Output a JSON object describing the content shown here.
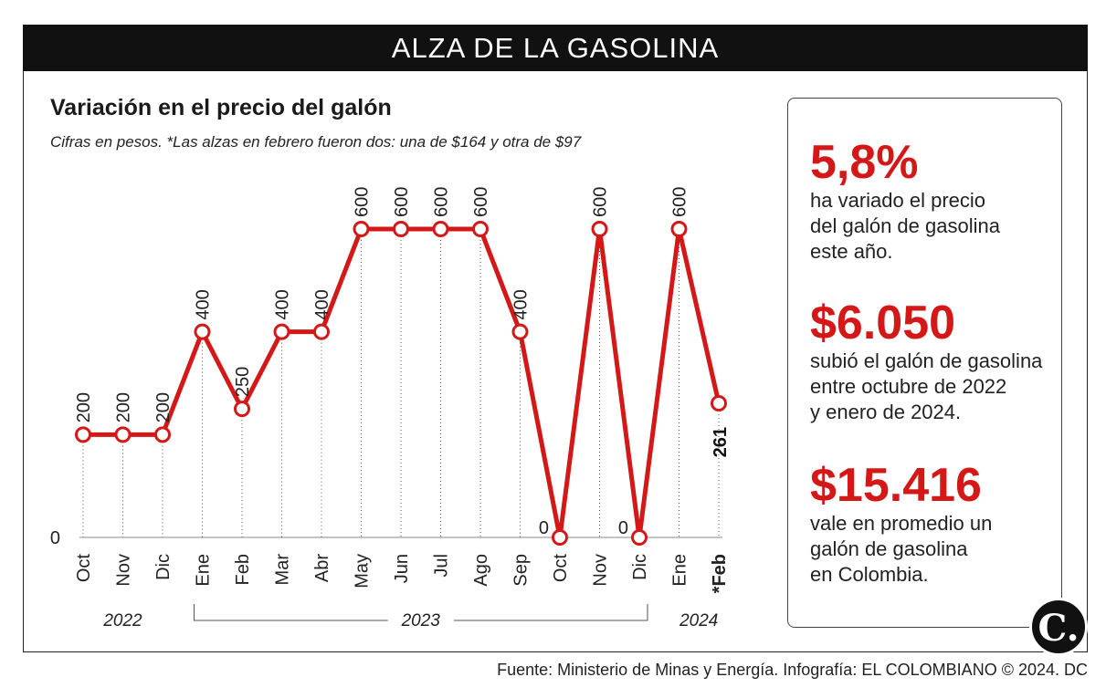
{
  "header": {
    "title": "ALZA DE LA GASOLINA"
  },
  "chart_data": {
    "type": "line",
    "title": "Variación en el precio del galón",
    "subtitle": "Cifras en pesos. *Las alzas en febrero fueron dos: una de $164 y otra de $97",
    "categories": [
      "Oct",
      "Nov",
      "Dic",
      "Ene",
      "Feb",
      "Mar",
      "Abr",
      "May",
      "Jun",
      "Jul",
      "Ago",
      "Sep",
      "Oct",
      "Nov",
      "Dic",
      "Ene",
      "*Feb"
    ],
    "values": [
      200,
      200,
      200,
      400,
      250,
      400,
      400,
      600,
      600,
      600,
      600,
      400,
      0,
      600,
      0,
      600,
      261
    ],
    "data_labels": [
      "200",
      "200",
      "200",
      "400",
      "250",
      "400",
      "400",
      "600",
      "600",
      "600",
      "600",
      "400",
      "0",
      "600",
      "0",
      "600",
      "261"
    ],
    "y_tick_labels": [
      "0"
    ],
    "year_groups": [
      {
        "label": "2022",
        "start": 0,
        "end": 2
      },
      {
        "label": "2023",
        "start": 3,
        "end": 14
      },
      {
        "label": "2024",
        "start": 15,
        "end": 16
      }
    ],
    "ylim": [
      0,
      600
    ],
    "grid": "vertical dotted lines",
    "line_color": "#d41818",
    "highlight_index": 16
  },
  "stats": [
    {
      "value": "5,8%",
      "description": "ha variado el precio\ndel galón de gasolina\neste año."
    },
    {
      "value": "$6.050",
      "description": "subió el galón de gasolina\nentre octubre de 2022\ny enero de 2024."
    },
    {
      "value": "$15.416",
      "description": "vale en promedio un\ngalón de gasolina\nen Colombia."
    }
  ],
  "logo": {
    "letter": "C."
  },
  "footer": {
    "source": "Fuente: Ministerio de Minas y Energía. Infografía: EL COLOMBIANO © 2024. DC"
  },
  "colors": {
    "accent": "#d41818",
    "banner": "#111111"
  }
}
